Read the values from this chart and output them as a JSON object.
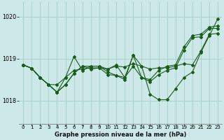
{
  "background_color": "#cce8e8",
  "grid_color": "#99ccbb",
  "line_color": "#1a5c1a",
  "marker_color": "#1a5c1a",
  "title": "Graphe pression niveau de la mer (hPa)",
  "xlim": [
    -0.5,
    23.5
  ],
  "ylim": [
    1017.45,
    1020.35
  ],
  "yticks": [
    1018,
    1019,
    1020
  ],
  "xticks": [
    0,
    1,
    2,
    3,
    4,
    5,
    6,
    7,
    8,
    9,
    10,
    11,
    12,
    13,
    14,
    15,
    16,
    17,
    18,
    19,
    20,
    21,
    22,
    23
  ],
  "series": [
    {
      "x": [
        0,
        1,
        2,
        3,
        4,
        5,
        6,
        7,
        8,
        9,
        10,
        11,
        12,
        13,
        14,
        15,
        16,
        17,
        18,
        19,
        20,
        21,
        22,
        23
      ],
      "y": [
        1018.85,
        1018.77,
        1018.55,
        1018.38,
        1018.38,
        1018.55,
        1018.72,
        1018.75,
        1018.78,
        1018.78,
        1018.75,
        1018.82,
        1018.8,
        1018.88,
        1018.82,
        1018.75,
        1018.78,
        1018.78,
        1018.82,
        1018.88,
        1018.85,
        1019.18,
        1019.58,
        1019.6
      ]
    },
    {
      "x": [
        0,
        1,
        2,
        3,
        4,
        5,
        6,
        7,
        8,
        9,
        10,
        11,
        12,
        13,
        14,
        15,
        16,
        17,
        18,
        19,
        20,
        21,
        22,
        23
      ],
      "y": [
        1018.85,
        1018.77,
        1018.55,
        1018.38,
        1018.2,
        1018.38,
        1018.65,
        1018.82,
        1018.82,
        1018.82,
        1018.68,
        1018.6,
        1018.55,
        1018.82,
        1018.55,
        1018.45,
        1018.62,
        1018.72,
        1018.78,
        1019.2,
        1019.5,
        1019.52,
        1019.72,
        1019.72
      ]
    },
    {
      "x": [
        0,
        1,
        2,
        3,
        4,
        5,
        6,
        7,
        8,
        9,
        10,
        11,
        12,
        13,
        14,
        15,
        16,
        17,
        18,
        19,
        20,
        21,
        22,
        23
      ],
      "y": [
        1018.85,
        1018.77,
        1018.55,
        1018.38,
        1018.2,
        1018.55,
        1019.05,
        1018.72,
        1018.82,
        1018.82,
        1018.75,
        1018.85,
        1018.55,
        1019.08,
        1018.82,
        1018.15,
        1018.02,
        1018.02,
        1018.28,
        1018.55,
        1018.68,
        1019.15,
        1019.55,
        1019.95
      ]
    },
    {
      "x": [
        0,
        1,
        2,
        3,
        4,
        5,
        6,
        7,
        8,
        9,
        10,
        11,
        12,
        13,
        14,
        15,
        16,
        17,
        18,
        19,
        20,
        21,
        22,
        23
      ],
      "y": [
        1018.85,
        1018.77,
        1018.55,
        1018.38,
        1018.2,
        1018.38,
        1018.65,
        1018.82,
        1018.75,
        1018.78,
        1018.62,
        1018.6,
        1018.5,
        1019.08,
        1018.55,
        1018.5,
        1018.72,
        1018.82,
        1018.85,
        1019.28,
        1019.55,
        1019.58,
        1019.75,
        1019.78
      ]
    }
  ]
}
